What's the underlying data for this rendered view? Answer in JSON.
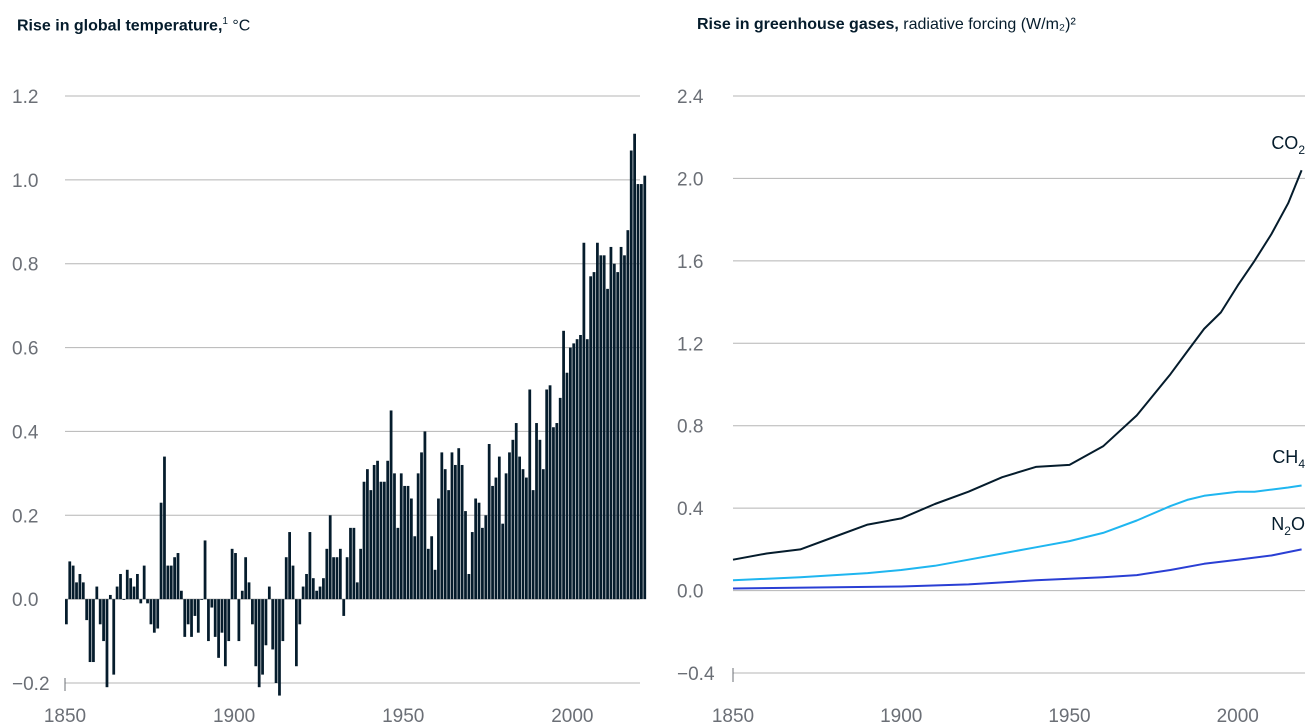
{
  "charts_text": {
    "left": {
      "title_bold": "Rise in global temperature,",
      "title_sup": "1",
      "title_rest": " °C"
    },
    "right": {
      "title_bold": "Rise in greenhouse gases,",
      "title_rest": " radiative forcing (W/m₂)²"
    }
  },
  "colors": {
    "bar": "#051c2c",
    "co2": "#051c2c",
    "ch4": "#1fb6f0",
    "n2o": "#2a3fd4",
    "grid": "#b5b5b5",
    "tick_text": "#6b6f76"
  },
  "chart_data": [
    {
      "type": "bar",
      "title": "Rise in global temperature,1 °C",
      "xlabel": "",
      "ylabel": "°C",
      "xlim": [
        1850,
        2020
      ],
      "ylim": [
        -0.2,
        1.2
      ],
      "x_ticks": [
        "1850",
        "1900",
        "1950",
        "2000"
      ],
      "y_ticks": [
        "1.2",
        "1.0",
        "0.8",
        "0.6",
        "0.4",
        "0.2",
        "0.0",
        "−0.2"
      ],
      "grid": true,
      "x_start": 1850,
      "values": [
        -0.06,
        0.09,
        0.08,
        0.04,
        0.06,
        0.04,
        -0.05,
        -0.15,
        -0.15,
        0.03,
        -0.06,
        -0.1,
        -0.21,
        0.01,
        -0.18,
        0.03,
        0.06,
        0.0,
        0.07,
        0.05,
        0.03,
        0.06,
        -0.01,
        0.08,
        -0.01,
        -0.06,
        -0.08,
        -0.07,
        0.23,
        0.34,
        0.08,
        0.08,
        0.1,
        0.11,
        0.02,
        -0.09,
        -0.06,
        -0.09,
        -0.04,
        -0.08,
        0.0,
        0.14,
        -0.1,
        -0.02,
        -0.09,
        -0.14,
        -0.08,
        -0.16,
        -0.1,
        0.12,
        0.11,
        -0.1,
        0.02,
        0.1,
        0.04,
        -0.06,
        -0.16,
        -0.21,
        -0.18,
        -0.11,
        0.03,
        -0.12,
        -0.2,
        -0.23,
        -0.1,
        0.1,
        0.16,
        0.08,
        -0.16,
        -0.06,
        0.03,
        0.06,
        0.16,
        0.05,
        0.02,
        0.03,
        0.05,
        0.12,
        0.2,
        0.1,
        0.1,
        0.12,
        -0.04,
        0.1,
        0.17,
        0.17,
        0.04,
        0.12,
        0.28,
        0.31,
        0.26,
        0.32,
        0.33,
        0.28,
        0.28,
        0.33,
        0.45,
        0.3,
        0.17,
        0.3,
        0.27,
        0.27,
        0.24,
        0.15,
        0.3,
        0.35,
        0.4,
        0.12,
        0.15,
        0.07,
        0.24,
        0.35,
        0.31,
        0.26,
        0.35,
        0.32,
        0.36,
        0.32,
        0.21,
        0.06,
        0.16,
        0.24,
        0.23,
        0.17,
        0.2,
        0.37,
        0.27,
        0.29,
        0.34,
        0.18,
        0.3,
        0.35,
        0.38,
        0.42,
        0.34,
        0.31,
        0.29,
        0.5,
        0.26,
        0.42,
        0.38,
        0.31,
        0.5,
        0.51,
        0.41,
        0.42,
        0.48,
        0.64,
        0.54,
        0.6,
        0.61,
        0.62,
        0.63,
        0.85,
        0.62,
        0.77,
        0.78,
        0.85,
        0.82,
        0.82,
        0.74,
        0.84,
        0.8,
        0.78,
        0.84,
        0.82,
        0.88,
        1.07,
        1.11,
        0.99,
        0.99,
        1.01
      ]
    },
    {
      "type": "line",
      "title": "Rise in greenhouse gases, radiative forcing (W/m₂)²",
      "xlabel": "",
      "ylabel": "radiative forcing (W/m₂)",
      "xlim": [
        1850,
        2020
      ],
      "ylim": [
        -0.4,
        2.4
      ],
      "x_ticks": [
        "1850",
        "1900",
        "1950",
        "2000"
      ],
      "y_ticks": [
        "2.4",
        "2.0",
        "1.6",
        "1.2",
        "0.8",
        "0.4",
        "0.0",
        "−0.4"
      ],
      "grid": true,
      "series": [
        {
          "name": "CO2",
          "label_main": "CO",
          "label_sub": "2",
          "x": [
            1850,
            1860,
            1870,
            1880,
            1890,
            1900,
            1910,
            1920,
            1930,
            1940,
            1950,
            1960,
            1970,
            1980,
            1985,
            1990,
            1995,
            2000,
            2005,
            2010,
            2015,
            2019
          ],
          "values": [
            0.15,
            0.18,
            0.2,
            0.26,
            0.32,
            0.35,
            0.42,
            0.48,
            0.55,
            0.6,
            0.61,
            0.7,
            0.85,
            1.05,
            1.16,
            1.27,
            1.35,
            1.48,
            1.6,
            1.73,
            1.88,
            2.04
          ]
        },
        {
          "name": "CH4",
          "label_main": "CH",
          "label_sub": "4",
          "x": [
            1850,
            1870,
            1890,
            1900,
            1910,
            1920,
            1930,
            1940,
            1950,
            1960,
            1970,
            1980,
            1985,
            1990,
            1995,
            2000,
            2005,
            2010,
            2015,
            2019
          ],
          "values": [
            0.05,
            0.065,
            0.085,
            0.1,
            0.12,
            0.15,
            0.18,
            0.21,
            0.24,
            0.28,
            0.34,
            0.41,
            0.44,
            0.46,
            0.47,
            0.48,
            0.48,
            0.49,
            0.5,
            0.51
          ]
        },
        {
          "name": "N2O",
          "label_main": "N",
          "label_sub": "2",
          "label_tail": "O",
          "x": [
            1850,
            1900,
            1920,
            1940,
            1960,
            1970,
            1980,
            1990,
            2000,
            2010,
            2019
          ],
          "values": [
            0.01,
            0.02,
            0.03,
            0.05,
            0.065,
            0.075,
            0.1,
            0.13,
            0.15,
            0.17,
            0.2
          ]
        }
      ]
    }
  ]
}
